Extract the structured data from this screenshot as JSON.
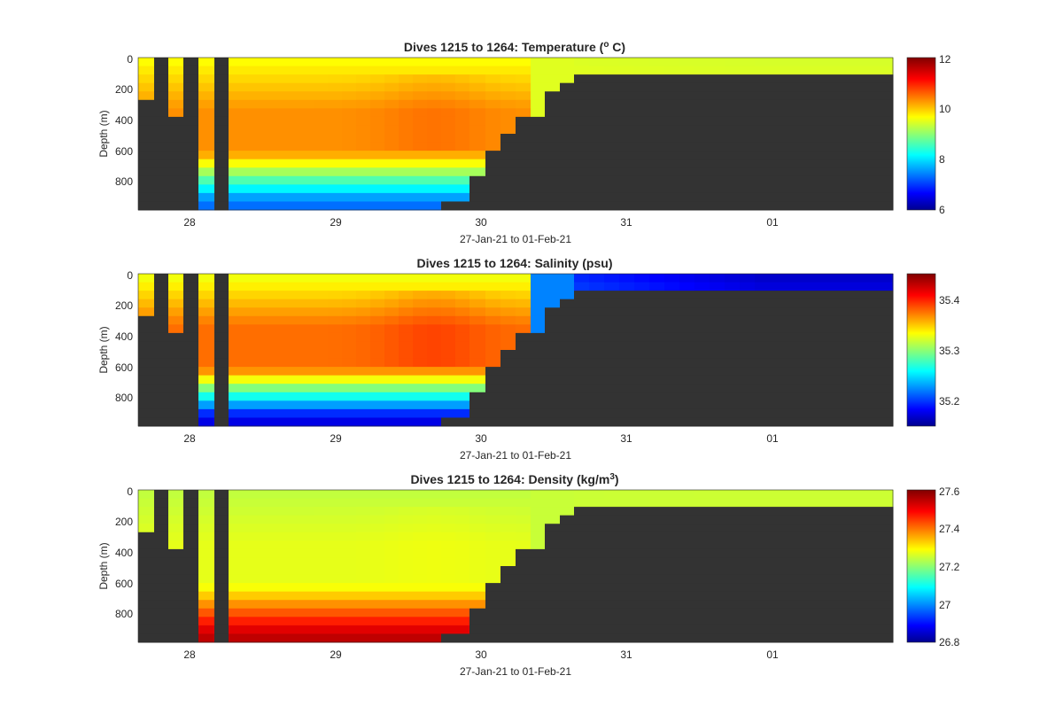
{
  "figure": {
    "colors": {
      "background": "#ffffff",
      "no_data": "#333333",
      "colormap": "jet"
    }
  },
  "chart_data": [
    {
      "type": "heatmap",
      "title_prefix": "Dives 1215 to 1264: Temperature (",
      "title_sup": "o",
      "title_suffix": " C)",
      "xlabel": "27-Jan-21 to 01-Feb-21",
      "ylabel": "Depth (m)",
      "x_ticks": [
        "28",
        "29",
        "30",
        "31",
        "01"
      ],
      "y_ticks": [
        "0",
        "200",
        "400",
        "600",
        "800"
      ],
      "ylim": [
        0,
        990
      ],
      "colorbar": {
        "min": 6,
        "max": 12,
        "ticks": [
          "6",
          "8",
          "10",
          "12"
        ],
        "tick_values": [
          6,
          8,
          10,
          12
        ]
      },
      "profile_shape": {
        "surface": 9.7,
        "bottom": 7.4,
        "shelf": 9.5,
        "core": 10.4
      }
    },
    {
      "type": "heatmap",
      "title_prefix": "Dives 1215 to 1264: Salinity (psu)",
      "title_sup": "",
      "title_suffix": "",
      "xlabel": "27-Jan-21 to 01-Feb-21",
      "ylabel": "Depth (m)",
      "x_ticks": [
        "28",
        "29",
        "30",
        "31",
        "01"
      ],
      "y_ticks": [
        "0",
        "200",
        "400",
        "600",
        "800"
      ],
      "ylim": [
        0,
        990
      ],
      "colorbar": {
        "min": 35.15,
        "max": 35.45,
        "ticks": [
          "35.2",
          "35.3",
          "35.4"
        ],
        "tick_values": [
          35.2,
          35.3,
          35.4
        ]
      },
      "profile_shape": {
        "surface": 35.33,
        "bottom": 35.18,
        "shelf": 35.17,
        "core": 35.38
      }
    },
    {
      "type": "heatmap",
      "title_prefix": "Dives 1215 to 1264: Density (kg/m",
      "title_sup": "3",
      "title_suffix": ")",
      "xlabel": "27-Jan-21 to 01-Feb-21",
      "ylabel": "Depth (m)",
      "x_ticks": [
        "28",
        "29",
        "30",
        "31",
        "01"
      ],
      "y_ticks": [
        "0",
        "200",
        "400",
        "600",
        "800"
      ],
      "ylim": [
        0,
        990
      ],
      "colorbar": {
        "min": 26.8,
        "max": 27.6,
        "ticks": [
          "26.8",
          "27",
          "27.2",
          "27.4",
          "27.6"
        ],
        "tick_values": [
          26.8,
          27.0,
          27.2,
          27.4,
          27.6
        ]
      },
      "profile_shape": {
        "surface": 27.25,
        "bottom": 27.55,
        "shelf": 27.26,
        "core": 27.28
      }
    }
  ]
}
